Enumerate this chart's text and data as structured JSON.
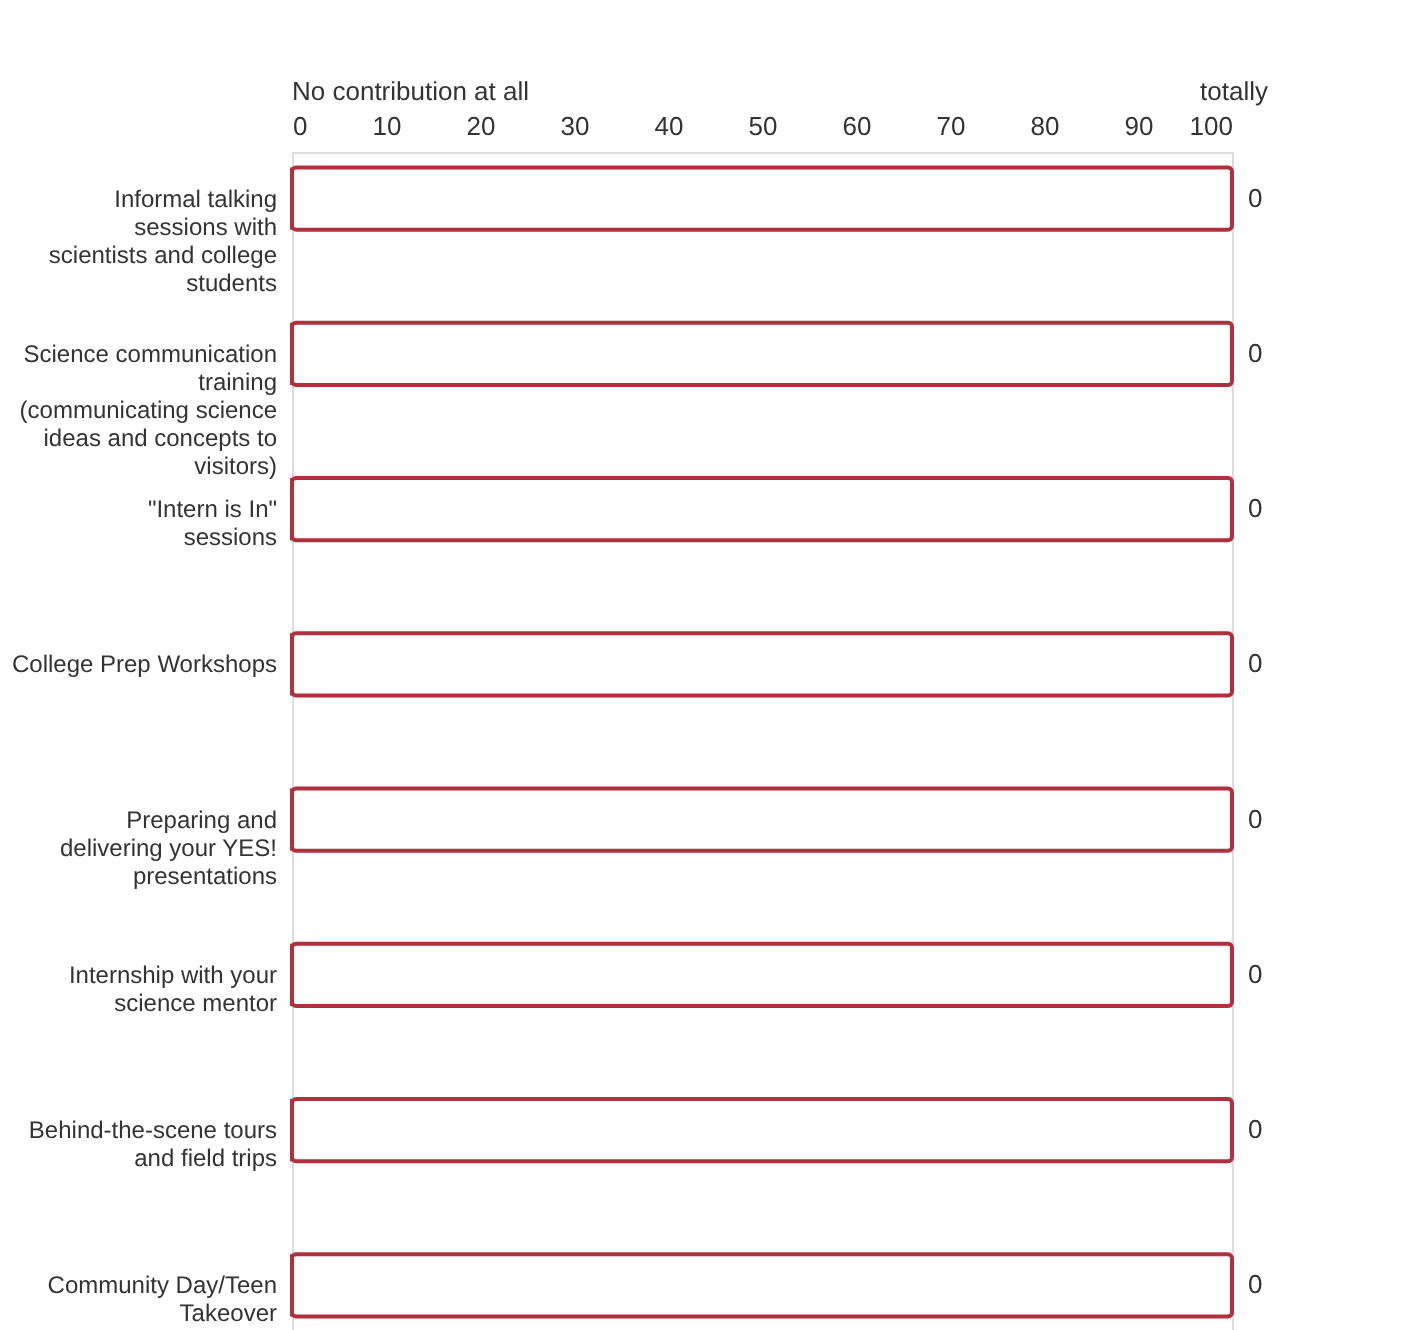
{
  "chart_data": {
    "type": "bar",
    "orientation": "horizontal",
    "stacked": true,
    "categories": [
      "Informal talking sessions with scientists and college students",
      "Science communication training (communicating science ideas and concepts to visitors)",
      "\"Intern is In\" sessions",
      "College Prep Workshops",
      "Preparing and delivering your YES! presentations",
      "Internship with your science mentor",
      "Behind-the-scene tours and field trips",
      "Community Day/Teen Takeover"
    ],
    "series": [
      {
        "color": "#b0303e",
        "values": [
          0,
          0,
          0,
          0,
          0,
          0,
          0,
          0
        ],
        "value_labels": [
          "0",
          "0",
          "0",
          "0",
          "0",
          "0",
          "0",
          "0"
        ]
      },
      {
        "color": "#b0303e",
        "values": [
          100,
          100,
          100,
          100,
          100,
          100,
          100,
          100
        ]
      }
    ],
    "xlim": [
      0,
      100
    ],
    "xticks": [
      0,
      10,
      20,
      30,
      40,
      50,
      60,
      70,
      80,
      90,
      100
    ],
    "annotations": [
      "No contribution at all",
      "totally"
    ],
    "grid": false
  }
}
